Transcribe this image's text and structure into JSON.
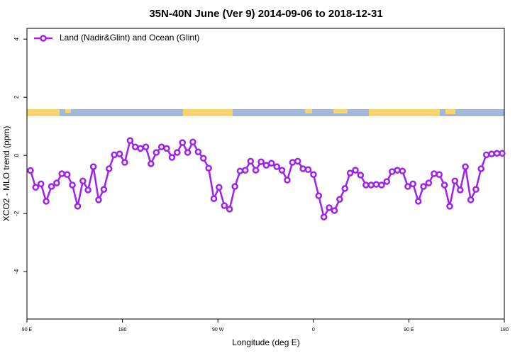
{
  "chart_data": {
    "type": "line",
    "title": "35N-40N June (Ver 9)   2014-09-06 to 2018-12-31",
    "xlabel": "Longitude (deg E)",
    "ylabel": "XCO2 - MLO trend (ppm)",
    "xlim": [
      90,
      540
    ],
    "ylim": [
      -5.63,
      4.37
    ],
    "xticks": [
      {
        "value": 90,
        "label": "90 E"
      },
      180,
      {
        "value": 270,
        "label": "90 W"
      },
      {
        "value": 360,
        "label": "0"
      },
      {
        "value": 450,
        "label": "90 E"
      },
      {
        "value": 540,
        "label": "180"
      }
    ],
    "yticks": [
      -4,
      -2,
      0,
      2,
      4
    ],
    "legend": "top-left",
    "series": [
      {
        "name": "Land (Nadir&Glint) and Ocean (Glint)",
        "color": "#a020f0",
        "x": [
          93.3,
          98.2,
          103.2,
          108.1,
          113.1,
          118.0,
          122.9,
          127.9,
          132.8,
          137.8,
          142.7,
          147.6,
          152.6,
          157.5,
          162.5,
          167.4,
          172.3,
          177.3,
          182.2,
          187.2,
          192.1,
          197.0,
          202.0,
          206.9,
          211.9,
          216.8,
          221.7,
          226.7,
          231.6,
          236.6,
          241.5,
          246.4,
          251.4,
          256.3,
          261.3,
          266.2,
          271.1,
          276.1,
          281.0,
          286.0,
          290.9,
          295.8,
          300.8,
          305.7,
          310.7,
          315.6,
          320.5,
          325.5,
          330.4,
          335.4,
          340.3,
          345.2,
          350.2,
          355.1,
          360.1,
          365.0,
          369.9,
          374.9,
          379.8,
          384.8,
          389.7,
          394.6,
          399.6,
          404.5,
          409.5,
          414.4,
          419.3,
          424.3,
          429.2,
          434.2,
          439.1,
          444.0,
          449.0,
          453.9,
          458.9,
          463.8,
          468.7,
          473.7,
          478.6,
          483.6,
          488.5,
          493.4,
          498.4,
          503.3,
          508.3,
          513.2,
          518.1,
          523.1,
          528.0,
          533.0,
          537.9
        ],
        "values": [
          -0.52,
          -1.1,
          -0.98,
          -1.58,
          -1.07,
          -0.95,
          -0.63,
          -0.66,
          -1.02,
          -1.75,
          -0.88,
          -1.19,
          -0.39,
          -1.53,
          -1.17,
          -0.46,
          0.02,
          0.05,
          -0.24,
          0.51,
          0.29,
          0.24,
          0.29,
          -0.29,
          0.1,
          0.29,
          0.24,
          -0.07,
          0.1,
          0.44,
          0.1,
          0.46,
          0.12,
          -0.1,
          -0.44,
          -1.49,
          -1.1,
          -1.73,
          -1.85,
          -1.07,
          -0.54,
          -0.51,
          -0.2,
          -0.51,
          -0.22,
          -0.34,
          -0.27,
          -0.39,
          -0.51,
          -0.85,
          -0.24,
          -0.2,
          -0.46,
          -0.49,
          -0.66,
          -1.39,
          -2.12,
          -1.8,
          -1.9,
          -1.51,
          -1.14,
          -0.61,
          -0.51,
          -0.68,
          -1.02,
          -1.02,
          -1.0,
          -1.02,
          -0.9,
          -0.56,
          -0.51,
          -0.54,
          -1.07,
          -0.98,
          -1.58,
          -1.07,
          -0.95,
          -0.63,
          -0.66,
          -1.02,
          -1.75,
          -0.88,
          -1.19,
          -0.39,
          -1.53,
          -1.17,
          -0.46,
          0.02,
          0.05,
          0.07,
          0.07
        ]
      }
    ]
  }
}
